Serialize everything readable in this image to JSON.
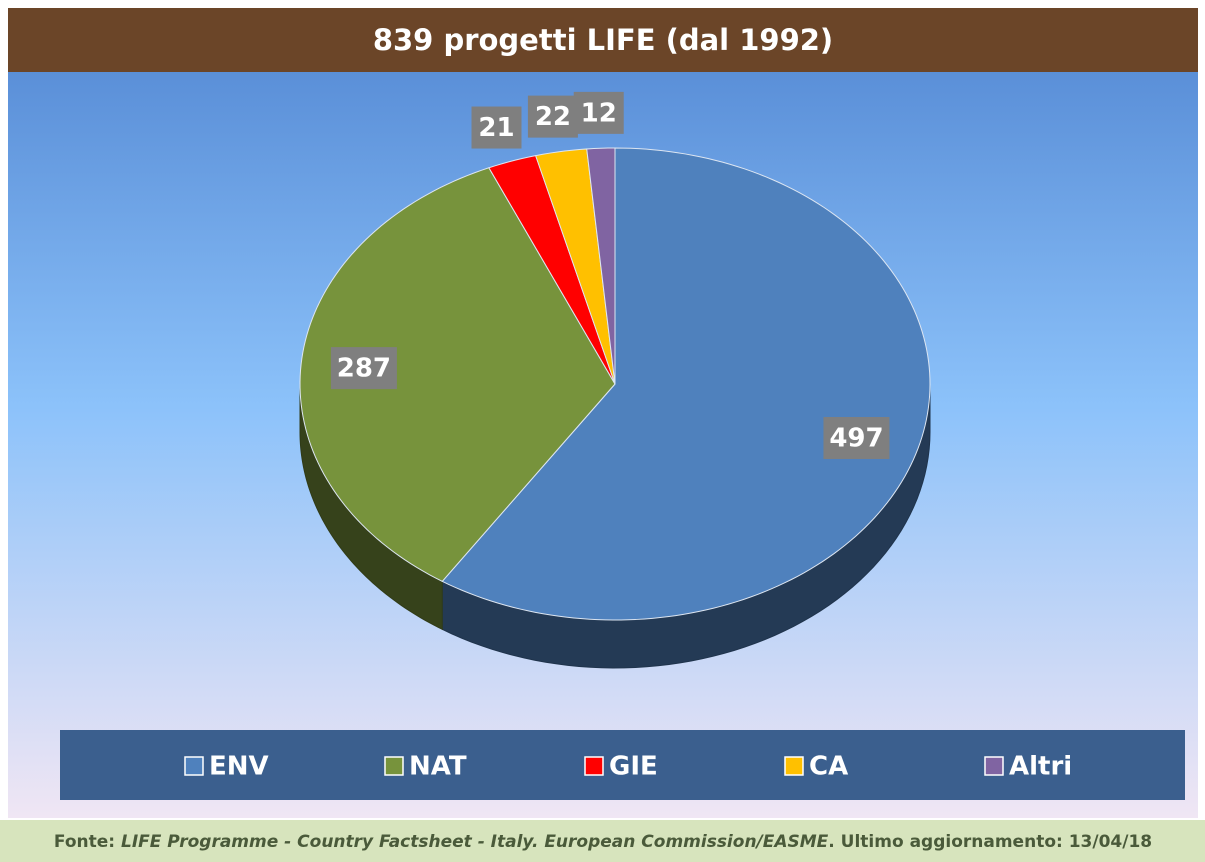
{
  "chart_data": {
    "type": "pie3d",
    "title": "839 progetti LIFE (dal 1992)",
    "categories": [
      "ENV",
      "NAT",
      "GIE",
      "CA",
      "Altri"
    ],
    "values": [
      497,
      287,
      21,
      22,
      12
    ],
    "colors": [
      "#4f81bd",
      "#77933c",
      "#ff0000",
      "#ffc000",
      "#8064a2"
    ],
    "legend": "bottom",
    "footer": [
      "Fonte:",
      "LIFE Programme - Country Factsheet - Italy. European Commission/EASME",
      ". Ultimo aggiornamento: 13/04/18"
    ]
  }
}
